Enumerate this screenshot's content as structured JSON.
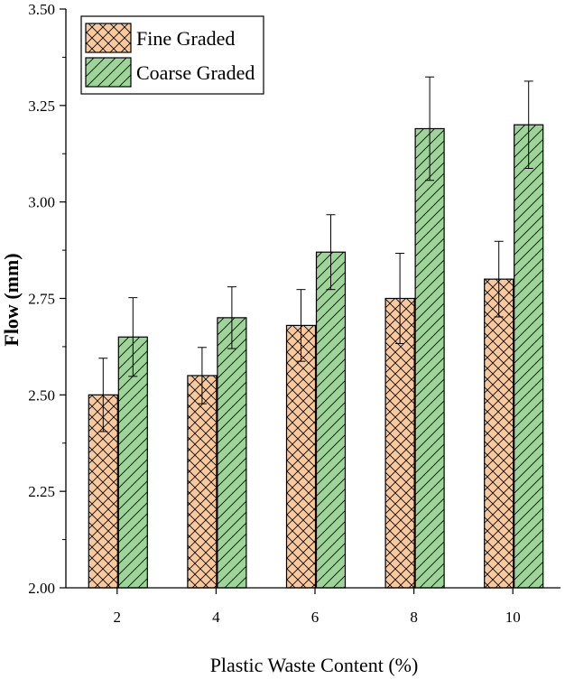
{
  "chart_data": {
    "type": "bar",
    "categories": [
      "2",
      "4",
      "6",
      "8",
      "10"
    ],
    "series": [
      {
        "name": "Fine Graded",
        "values": [
          2.5,
          2.55,
          2.68,
          2.75,
          2.8
        ],
        "errors": [
          0.095,
          0.073,
          0.093,
          0.117,
          0.098
        ],
        "fill": "#F9C99E",
        "pattern": "crosshatch"
      },
      {
        "name": "Coarse Graded",
        "values": [
          2.65,
          2.7,
          2.87,
          3.19,
          3.2
        ],
        "errors": [
          0.102,
          0.08,
          0.097,
          0.134,
          0.113
        ],
        "fill": "#9ED49A",
        "pattern": "diagonal"
      }
    ],
    "title": "",
    "xlabel": "Plastic Waste Content (%)",
    "ylabel": "Flow (mm)",
    "ylim": [
      2.0,
      3.5
    ],
    "yticks": [
      "2.00",
      "2.25",
      "2.50",
      "2.75",
      "3.00",
      "3.25",
      "3.50"
    ],
    "grid": false,
    "legend_position": "top-left"
  }
}
